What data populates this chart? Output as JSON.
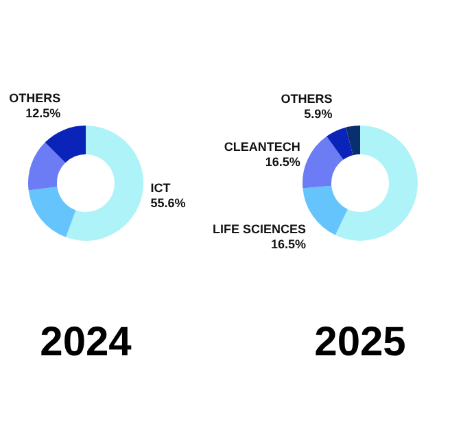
{
  "chart_data": [
    {
      "type": "donut",
      "title": "2024",
      "categories": [
        "ICT",
        null,
        null,
        "OTHERS"
      ],
      "values": [
        55.6,
        17.4,
        14.5,
        12.5
      ],
      "colors": [
        "#aef3f7",
        "#66c4fd",
        "#6b7cf5",
        "#0a23b8"
      ],
      "value_labels": [
        "55.6%",
        null,
        null,
        "12.5%"
      ]
    },
    {
      "type": "donut",
      "title": "2025",
      "categories": [
        null,
        "LIFE SCIENCES",
        "CLEANTECH",
        "OTHERS",
        null
      ],
      "values": [
        57.1,
        16.5,
        16.5,
        5.9,
        4.0
      ],
      "colors": [
        "#aef3f7",
        "#66c4fd",
        "#6b7cf5",
        "#0a23b8",
        "#0a2f6e"
      ],
      "value_labels": [
        null,
        "16.5%",
        "16.5%",
        "5.9%",
        null
      ]
    }
  ]
}
